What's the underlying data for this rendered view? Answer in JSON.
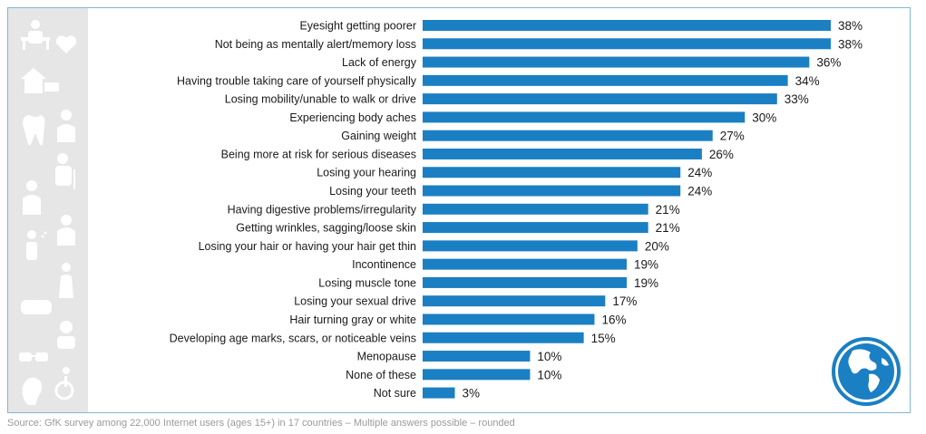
{
  "chart_data": {
    "type": "bar",
    "orientation": "horizontal",
    "categories": [
      "Eyesight getting poorer",
      "Not being as mentally alert/memory loss",
      "Lack of energy",
      "Having trouble taking care of yourself physically",
      "Losing mobility/unable to walk or drive",
      "Experiencing body aches",
      "Gaining weight",
      "Being more at risk for serious diseases",
      "Losing your hearing",
      "Losing your teeth",
      "Having digestive problems/irregularity",
      "Getting wrinkles, sagging/loose skin",
      "Losing your hair or having your hair get thin",
      "Incontinence",
      "Losing muscle tone",
      "Losing your sexual drive",
      "Hair turning gray or white",
      "Developing age marks, scars, or noticeable veins",
      "Menopause",
      "None of these",
      "Not sure"
    ],
    "values": [
      38,
      38,
      36,
      34,
      33,
      30,
      27,
      26,
      24,
      24,
      21,
      21,
      20,
      19,
      19,
      17,
      16,
      15,
      10,
      10,
      3
    ],
    "labels": [
      "38%",
      "38%",
      "36%",
      "34%",
      "33%",
      "30%",
      "27%",
      "26%",
      "24%",
      "24%",
      "21%",
      "21%",
      "20%",
      "19%",
      "19%",
      "17%",
      "16%",
      "15%",
      "10%",
      "10%",
      "3%"
    ],
    "xlim": [
      0,
      40
    ],
    "bar_color": "#1b7fc4",
    "grid": false,
    "legend": "none"
  },
  "footer": {
    "source": "Source: GfK survey among 22,000 Internet users (ages 15+) in 17 countries – Multiple answers possible – rounded"
  },
  "icons": {
    "sidebar": [
      "desk-person-icon",
      "heart-icon",
      "house-icon",
      "tooth-icon",
      "person-icon",
      "elderly-person-icon",
      "head-icon",
      "coughing-person-icon",
      "back-pain-icon",
      "teeth-icon",
      "pain-head-icon",
      "glasses-icon",
      "ear-icon",
      "wheelchair-icon"
    ],
    "brand": "globe-icon"
  },
  "colors": {
    "sidebar_bg": "#e6e6e6",
    "frame": "#7fb6d9",
    "icon": "#ffffff",
    "globe": "#1b7fc4"
  }
}
